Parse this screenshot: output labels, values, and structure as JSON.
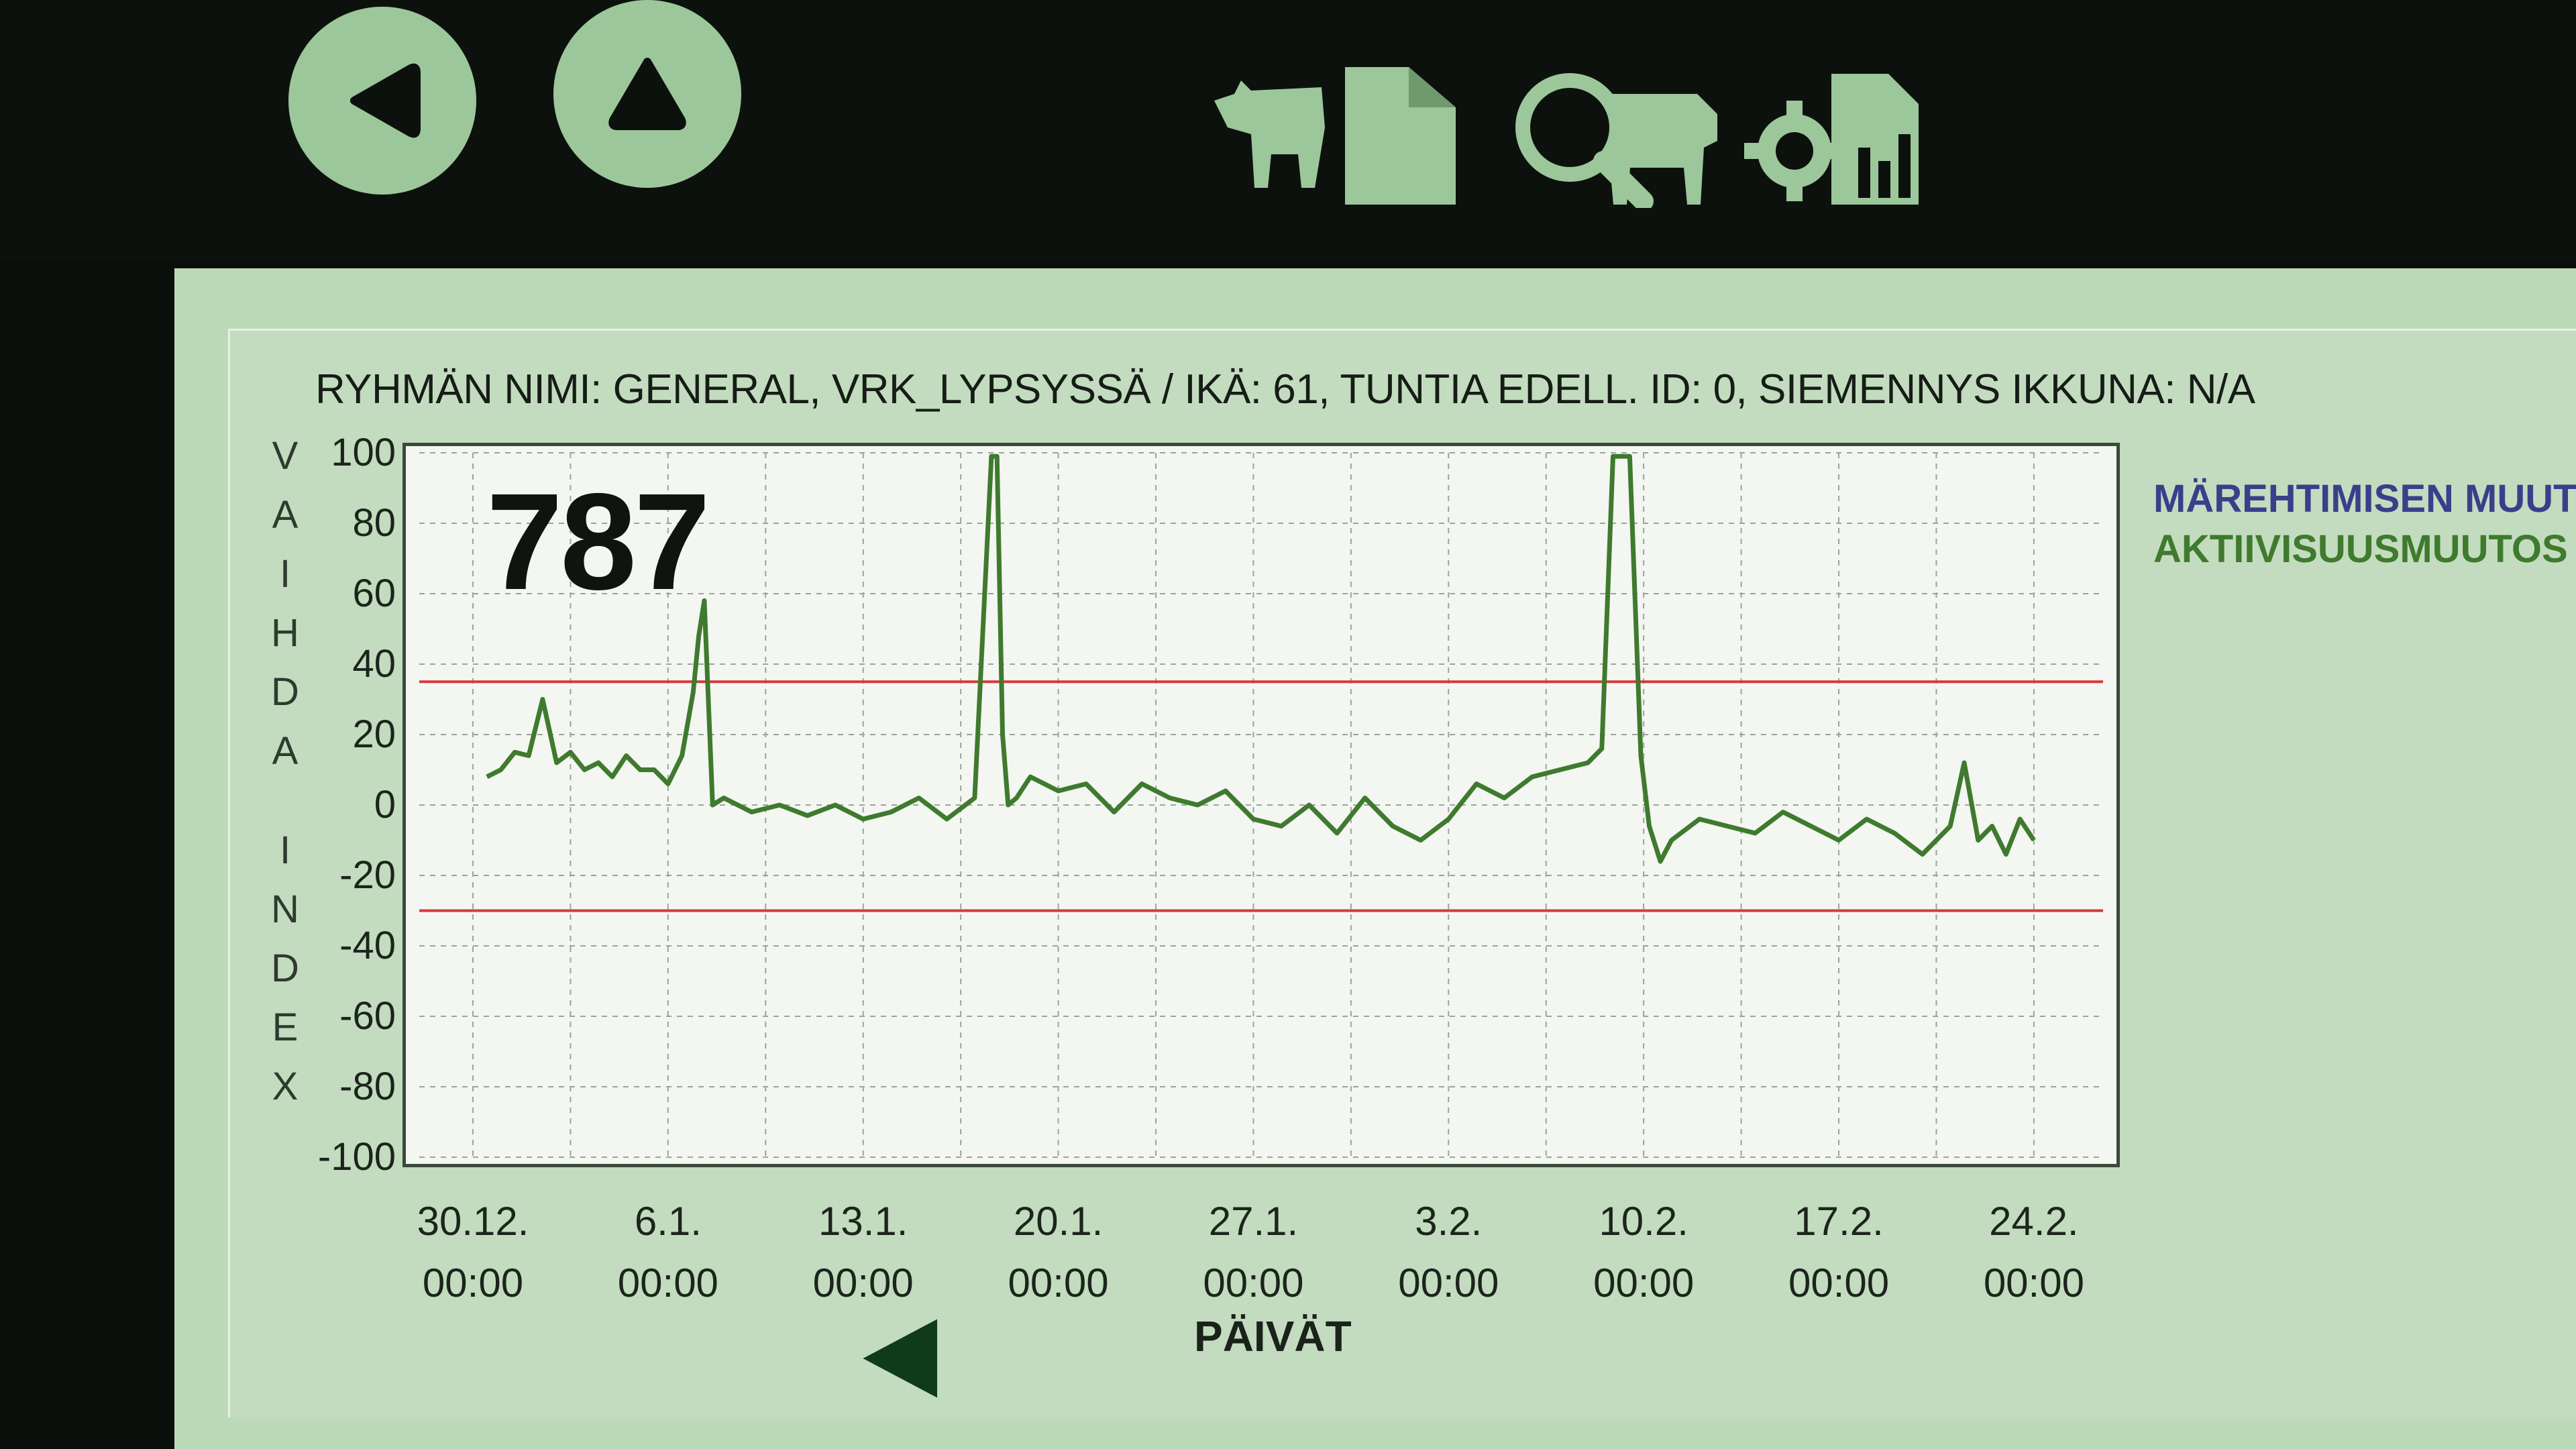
{
  "toolbar": {
    "back_icon": "back-arrow-icon",
    "up_icon": "up-arrow-icon",
    "tools": [
      "cow-document-icon",
      "search-cow-icon",
      "settings-chart-icon"
    ],
    "button_color": "#9cc79a"
  },
  "header": {
    "text": "RYHMÄN NIMI: GENERAL, VRK_LYPSYSSÄ / IKÄ: 61, TUNTIA EDELL. ID: 0, SIEMENNYS IKKUNA: N/A"
  },
  "animal_number": "787",
  "legend": {
    "items": [
      {
        "label": "MÄREHTIMISEN MUUT",
        "color": "#3a3f8a"
      },
      {
        "label": "AKTIIVISUUSMUUTOS",
        "color": "#3f7a2e"
      }
    ]
  },
  "chart_data": {
    "type": "line",
    "title": "",
    "ylabel": "VAIHDA INDEX",
    "xlabel": "PÄIVÄT",
    "ylim": [
      -100,
      100
    ],
    "yticks": [
      "100",
      "80",
      "60",
      "40",
      "20",
      "0",
      "-20",
      "-40",
      "-60",
      "-80",
      "-100"
    ],
    "xticks": [
      {
        "date": "30.12.",
        "time": "00:00"
      },
      {
        "date": "6.1.",
        "time": "00:00"
      },
      {
        "date": "13.1.",
        "time": "00:00"
      },
      {
        "date": "20.1.",
        "time": "00:00"
      },
      {
        "date": "27.1.",
        "time": "00:00"
      },
      {
        "date": "3.2.",
        "time": "00:00"
      },
      {
        "date": "10.2.",
        "time": "00:00"
      },
      {
        "date": "17.2.",
        "time": "00:00"
      },
      {
        "date": "24.2.",
        "time": "00:00"
      }
    ],
    "thresholds": [
      35,
      -30
    ],
    "threshold_color": "#d43a3a",
    "grid": true,
    "series": [
      {
        "name": "AKTIIVISUUSMUUTOS",
        "color": "#3f7a2e",
        "x_days": [
          0.5,
          1.0,
          1.5,
          2.0,
          2.5,
          3.0,
          3.5,
          4.0,
          4.5,
          5.0,
          5.5,
          6.0,
          6.5,
          7.0,
          7.5,
          7.9,
          8.1,
          8.3,
          8.6,
          9.0,
          10.0,
          11.0,
          12.0,
          13.0,
          14.0,
          15.0,
          16.0,
          17.0,
          18.0,
          18.6,
          18.8,
          19.0,
          19.2,
          19.5,
          20.0,
          21.0,
          22.0,
          23.0,
          24.0,
          25.0,
          26.0,
          27.0,
          28.0,
          29.0,
          30.0,
          31.0,
          32.0,
          33.0,
          34.0,
          35.0,
          36.0,
          37.0,
          38.0,
          39.0,
          40.0,
          40.5,
          40.9,
          41.2,
          41.5,
          41.9,
          42.2,
          42.6,
          43.0,
          44.0,
          45.0,
          46.0,
          47.0,
          48.0,
          49.0,
          50.0,
          51.0,
          52.0,
          53.0,
          53.5,
          54.0,
          54.5,
          55.0,
          55.5,
          56.0
        ],
        "values": [
          8,
          10,
          15,
          14,
          30,
          12,
          15,
          10,
          12,
          8,
          14,
          10,
          10,
          6,
          14,
          32,
          48,
          58,
          0,
          2,
          -2,
          0,
          -3,
          0,
          -4,
          -2,
          2,
          -4,
          2,
          99,
          99,
          20,
          0,
          2,
          8,
          4,
          6,
          -2,
          6,
          2,
          0,
          4,
          -4,
          -6,
          0,
          -8,
          2,
          -6,
          -10,
          -4,
          6,
          2,
          8,
          10,
          12,
          16,
          99,
          99,
          99,
          14,
          -6,
          -16,
          -10,
          -4,
          -6,
          -8,
          -2,
          -6,
          -10,
          -4,
          -8,
          -14,
          -6,
          12,
          -10,
          -6,
          -14,
          -4,
          -10
        ]
      }
    ]
  }
}
